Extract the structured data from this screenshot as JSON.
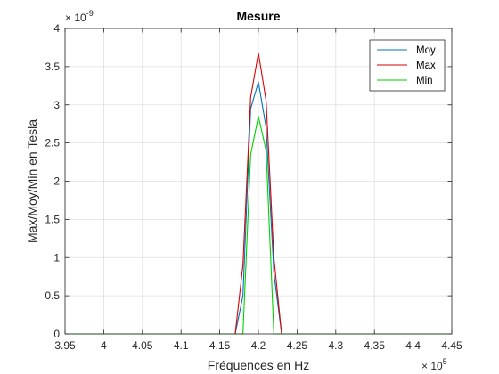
{
  "chart_data": {
    "type": "line",
    "title": "Mesure",
    "xlabel": "Fréquences en Hz",
    "ylabel": "Max/Moy/Min en Tesla",
    "x_exponent_prefix": "× 10",
    "x_exponent": "5",
    "y_exponent_prefix": "× 10",
    "y_exponent": "-9",
    "xlim": [
      395000,
      445000
    ],
    "ylim": [
      0,
      4e-09
    ],
    "xticks": [
      395000,
      400000,
      405000,
      410000,
      415000,
      420000,
      425000,
      430000,
      435000,
      440000,
      445000
    ],
    "xtick_labels": [
      "3.95",
      "4",
      "4.05",
      "4.1",
      "4.15",
      "4.2",
      "4.25",
      "4.3",
      "4.35",
      "4.4",
      "4.45"
    ],
    "yticks": [
      0,
      5e-10,
      1e-09,
      1.5e-09,
      2e-09,
      2.5e-09,
      3e-09,
      3.5e-09,
      4e-09
    ],
    "ytick_labels": [
      "0",
      "0.5",
      "1",
      "1.5",
      "2",
      "2.5",
      "3",
      "3.5",
      "4"
    ],
    "grid": true,
    "legend_position": "top-right",
    "x": [
      395000,
      417000,
      418000,
      419000,
      420000,
      421000,
      422000,
      423000,
      445000
    ],
    "series": [
      {
        "name": "Moy",
        "color": "#0072BD",
        "values": [
          0,
          0,
          5e-10,
          2.95e-09,
          3.3e-09,
          2.7e-09,
          8e-10,
          0,
          0
        ]
      },
      {
        "name": "Max",
        "color": "#D90000",
        "values": [
          0,
          0,
          9e-10,
          3.1e-09,
          3.68e-09,
          3.05e-09,
          1e-09,
          0,
          0
        ]
      },
      {
        "name": "Min",
        "color": "#00D000",
        "values": [
          0,
          0,
          0,
          2.35e-09,
          2.85e-09,
          2.4e-09,
          0,
          0,
          0
        ]
      }
    ]
  }
}
